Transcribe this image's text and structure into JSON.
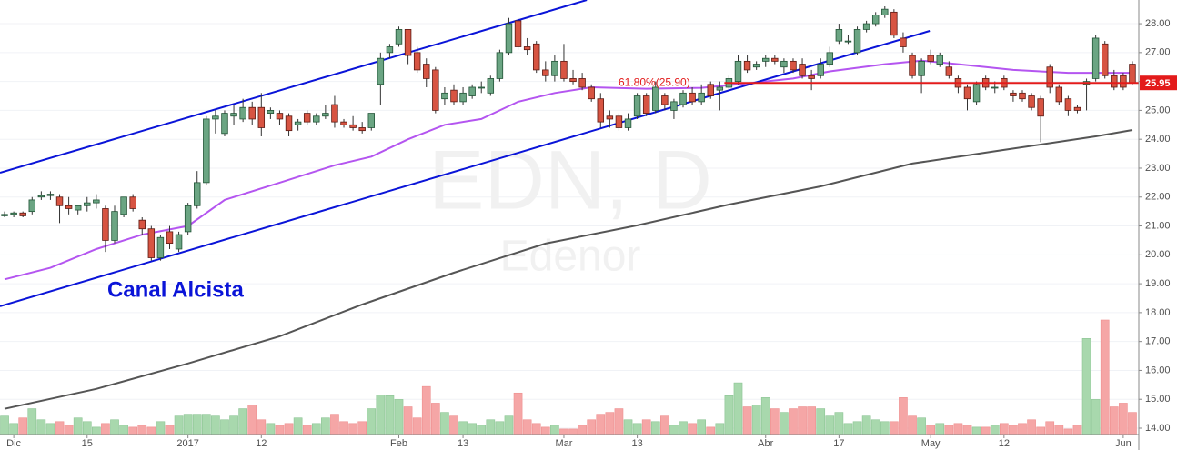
{
  "chart_data": {
    "type": "candlestick",
    "watermark": {
      "symbol": "EDN, D",
      "name": "Edenor"
    },
    "annotation": "Canal Alcista",
    "fib_label": "61.80%(25.90)",
    "categories": [
      null,
      "Dic",
      null,
      null,
      null,
      null,
      null,
      null,
      null,
      "15",
      null,
      null,
      null,
      null,
      null,
      null,
      null,
      null,
      null,
      null,
      "2017",
      null,
      null,
      null,
      null,
      null,
      null,
      null,
      "12",
      null,
      null,
      null,
      null,
      null,
      null,
      null,
      null,
      null,
      null,
      null,
      null,
      null,
      null,
      "Feb",
      null,
      null,
      null,
      null,
      null,
      null,
      "13",
      null,
      null,
      null,
      null,
      null,
      null,
      null,
      null,
      null,
      null,
      "Mar",
      null,
      null,
      null,
      null,
      null,
      null,
      null,
      "13",
      null,
      null,
      null,
      null,
      null,
      null,
      null,
      null,
      null,
      null,
      null,
      null,
      null,
      "Abr",
      null,
      null,
      null,
      null,
      null,
      null,
      null,
      "17",
      null,
      null,
      null,
      null,
      null,
      null,
      null,
      null,
      null,
      "May",
      null,
      null,
      null,
      null,
      null,
      null,
      null,
      "12",
      null,
      null,
      null,
      null,
      null,
      null,
      null,
      null,
      null,
      null,
      null,
      null,
      "Jun",
      null
    ],
    "open": [
      21.35,
      21.4,
      21.45,
      21.5,
      22.0,
      22.05,
      22.0,
      21.7,
      21.55,
      21.7,
      21.8,
      21.6,
      20.5,
      21.4,
      22.0,
      21.2,
      20.9,
      19.9,
      20.8,
      20.2,
      20.8,
      21.7,
      22.5,
      24.7,
      24.2,
      24.8,
      24.7,
      25.1,
      25.1,
      24.9,
      24.9,
      24.8,
      24.5,
      24.9,
      24.6,
      24.8,
      25.2,
      24.6,
      24.5,
      24.4,
      24.4,
      25.9,
      27.0,
      27.3,
      27.8,
      27.0,
      26.6,
      26.4,
      25.4,
      25.7,
      25.3,
      25.5,
      25.8,
      25.6,
      26.1,
      27.0,
      28.1,
      27.2,
      27.3,
      26.4,
      26.2,
      26.7,
      26.1,
      26.1,
      25.8,
      25.4,
      24.8,
      24.8,
      24.4,
      24.8,
      25.5,
      25.0,
      25.5,
      25.0,
      25.2,
      25.6,
      25.3,
      25.9,
      25.7,
      25.8,
      26.0,
      26.7,
      26.5,
      26.7,
      26.8,
      26.5,
      26.7,
      26.6,
      26.2,
      26.2,
      26.6,
      27.4,
      27.4,
      27.0,
      27.8,
      28.0,
      28.3,
      28.4,
      27.5,
      26.9,
      26.2,
      26.9,
      26.6,
      26.5,
      26.1,
      25.8,
      25.3,
      26.1,
      25.8,
      26.1,
      25.6,
      25.6,
      25.5,
      25.4,
      26.5,
      25.8,
      25.4,
      25.1,
      25.9,
      26.1,
      27.3,
      26.2,
      26.2,
      26.6
    ],
    "high": [
      21.5,
      21.5,
      21.5,
      22.0,
      22.2,
      22.2,
      22.1,
      22.0,
      21.7,
      22.0,
      22.1,
      21.7,
      21.7,
      22.0,
      22.1,
      21.3,
      21.0,
      20.7,
      21.0,
      20.8,
      21.8,
      22.9,
      24.8,
      25.0,
      25.0,
      25.2,
      25.4,
      25.3,
      25.6,
      25.1,
      25.0,
      24.9,
      24.7,
      25.0,
      24.9,
      25.2,
      25.5,
      24.7,
      24.8,
      24.6,
      24.9,
      27.0,
      27.3,
      27.9,
      27.8,
      27.2,
      26.8,
      26.5,
      25.8,
      25.9,
      25.8,
      25.9,
      26.0,
      26.2,
      27.1,
      28.2,
      28.2,
      27.5,
      27.4,
      26.7,
      26.9,
      27.3,
      26.4,
      26.3,
      25.9,
      25.6,
      25.0,
      24.9,
      24.9,
      25.6,
      25.6,
      26.0,
      25.6,
      25.4,
      25.7,
      25.8,
      25.9,
      26.0,
      26.0,
      26.2,
      26.9,
      26.9,
      26.7,
      26.9,
      26.9,
      26.8,
      26.8,
      26.8,
      26.4,
      26.8,
      27.2,
      28.0,
      27.6,
      27.9,
      28.1,
      28.4,
      28.6,
      28.5,
      27.7,
      27.0,
      26.8,
      27.1,
      27.0,
      26.7,
      26.2,
      25.9,
      26.0,
      26.2,
      26.0,
      26.2,
      25.7,
      25.7,
      25.6,
      25.5,
      26.6,
      25.9,
      25.5,
      25.2,
      26.1,
      27.6,
      27.4,
      26.4,
      26.3,
      26.7
    ],
    "low": [
      21.3,
      21.3,
      21.3,
      21.4,
      21.9,
      21.9,
      21.1,
      21.4,
      21.4,
      21.5,
      21.6,
      20.1,
      20.4,
      21.3,
      21.5,
      20.7,
      19.8,
      19.8,
      20.2,
      20.1,
      20.7,
      21.6,
      22.4,
      24.2,
      24.1,
      24.5,
      24.6,
      24.5,
      24.1,
      24.7,
      24.5,
      24.1,
      24.3,
      24.5,
      24.5,
      24.7,
      24.4,
      24.4,
      24.3,
      24.2,
      24.3,
      25.2,
      26.8,
      27.2,
      26.6,
      26.3,
      25.8,
      24.9,
      25.2,
      25.2,
      25.2,
      25.4,
      25.6,
      25.5,
      26.0,
      26.9,
      27.1,
      26.9,
      26.3,
      26.0,
      26.0,
      26.0,
      25.9,
      25.7,
      25.3,
      24.4,
      24.4,
      24.3,
      24.3,
      24.7,
      24.8,
      24.9,
      25.0,
      24.7,
      25.1,
      25.2,
      25.2,
      25.4,
      25.0,
      25.7,
      25.9,
      26.3,
      26.4,
      26.5,
      26.6,
      26.3,
      26.3,
      26.1,
      25.7,
      26.1,
      26.5,
      27.3,
      27.3,
      26.9,
      27.7,
      27.9,
      28.2,
      27.5,
      27.0,
      26.1,
      25.6,
      26.6,
      26.5,
      26.1,
      25.6,
      25.0,
      25.2,
      25.7,
      25.6,
      25.7,
      25.3,
      25.3,
      25.0,
      23.9,
      25.6,
      25.2,
      24.8,
      24.9,
      25.0,
      26.0,
      26.1,
      25.7,
      25.7,
      25.9
    ],
    "close": [
      21.4,
      21.45,
      21.35,
      21.9,
      22.05,
      22.1,
      21.7,
      21.6,
      21.7,
      21.8,
      21.9,
      20.5,
      21.5,
      22.0,
      21.6,
      20.9,
      19.9,
      20.6,
      20.4,
      20.7,
      21.7,
      22.5,
      24.7,
      24.8,
      24.9,
      24.9,
      25.1,
      24.7,
      24.4,
      25.0,
      24.7,
      24.3,
      24.6,
      24.6,
      24.8,
      24.9,
      24.6,
      24.5,
      24.4,
      24.3,
      24.9,
      26.8,
      27.2,
      27.8,
      26.9,
      26.4,
      26.1,
      25.0,
      25.6,
      25.3,
      25.6,
      25.8,
      25.8,
      26.1,
      27.0,
      28.0,
      27.2,
      27.1,
      26.4,
      26.2,
      26.7,
      26.1,
      26.0,
      25.8,
      25.4,
      24.6,
      24.7,
      24.4,
      24.7,
      25.5,
      24.9,
      25.8,
      25.2,
      25.3,
      25.6,
      25.3,
      25.6,
      25.5,
      25.8,
      26.1,
      26.7,
      26.4,
      26.6,
      26.8,
      26.7,
      26.7,
      26.4,
      26.2,
      26.1,
      26.6,
      27.0,
      27.8,
      27.4,
      27.8,
      28.0,
      28.3,
      28.5,
      27.6,
      27.2,
      26.2,
      26.7,
      26.7,
      26.9,
      26.2,
      25.8,
      25.4,
      25.9,
      25.8,
      25.8,
      25.8,
      25.5,
      25.4,
      25.1,
      24.8,
      25.8,
      25.3,
      25.0,
      25.0,
      26.0,
      27.5,
      26.2,
      25.8,
      25.8,
      25.95
    ],
    "up_color": "#6ba583",
    "down_color": "#d75442",
    "volume": [
      20,
      12,
      18,
      28,
      16,
      12,
      14,
      10,
      18,
      14,
      8,
      12,
      16,
      10,
      8,
      10,
      8,
      14,
      10,
      20,
      22,
      22,
      22,
      20,
      16,
      20,
      28,
      32,
      16,
      12,
      10,
      12,
      18,
      10,
      12,
      18,
      22,
      14,
      12,
      14,
      28,
      43,
      42,
      38,
      30,
      18,
      52,
      34,
      24,
      20,
      14,
      12,
      10,
      16,
      14,
      20,
      45,
      16,
      12,
      8,
      10,
      6,
      6,
      10,
      16,
      22,
      24,
      28,
      16,
      12,
      16,
      14,
      20,
      10,
      14,
      12,
      16,
      8,
      12,
      42,
      56,
      30,
      32,
      40,
      28,
      24,
      28,
      30,
      30,
      28,
      20,
      24,
      12,
      14,
      20,
      16,
      14,
      14,
      40,
      20,
      18,
      10,
      12,
      10,
      12,
      10,
      8,
      8,
      10,
      12,
      10,
      12,
      16,
      8,
      14,
      10,
      6,
      10,
      104,
      38,
      124,
      30,
      34,
      24
    ],
    "volume_up_color": "#a8d8ad",
    "volume_down_color": "#f5a6a6",
    "moving_averages": [
      {
        "color": "#b455f0",
        "x": [
          0,
          5,
          10,
          15,
          20,
          24,
          30,
          36,
          40,
          44,
          48,
          52,
          56,
          60,
          64,
          70,
          76,
          80,
          86,
          90,
          96,
          100,
          104,
          110,
          116,
          120,
          123
        ],
        "values": [
          19.15,
          19.55,
          20.2,
          20.7,
          21.0,
          21.9,
          22.5,
          23.1,
          23.4,
          24.0,
          24.5,
          24.7,
          25.3,
          25.6,
          25.8,
          25.75,
          25.78,
          25.9,
          26.1,
          26.35,
          26.6,
          26.72,
          26.6,
          26.4,
          26.3,
          26.3,
          26.3
        ]
      },
      {
        "color": "#555555",
        "x": [
          0,
          10,
          20,
          30,
          39,
          49,
          59,
          69,
          79,
          89,
          99,
          109,
          119,
          123
        ],
        "values": [
          14.67,
          15.36,
          16.24,
          17.18,
          18.28,
          19.38,
          20.39,
          21.02,
          21.74,
          22.37,
          23.16,
          23.63,
          24.1,
          24.32
        ]
      }
    ],
    "trend_lines": [
      {
        "color": "#0a14d8",
        "x": [
          -0.5,
          63.5
        ],
        "values": [
          22.84,
          28.82
        ]
      },
      {
        "color": "#0a14d8",
        "x": [
          -0.5,
          100.9
        ],
        "values": [
          18.22,
          27.75
        ]
      }
    ],
    "price_line": {
      "value": 25.95,
      "label": "25.95",
      "color": "#e31b1b",
      "x": 78.5
    },
    "ylim": [
      13.78,
      28.82
    ],
    "yticks": [
      {
        "value": 14,
        "label": "14.00"
      },
      {
        "value": 15,
        "label": "15.00"
      },
      {
        "value": 16,
        "label": "16.00"
      },
      {
        "value": 17,
        "label": "17.00"
      },
      {
        "value": 18,
        "label": "18.00"
      },
      {
        "value": 19,
        "label": "19.00"
      },
      {
        "value": 20,
        "label": "20.00"
      },
      {
        "value": 21,
        "label": "21.00"
      },
      {
        "value": 22,
        "label": "22.00"
      },
      {
        "value": 23,
        "label": "23.00"
      },
      {
        "value": 24,
        "label": "24.00"
      },
      {
        "value": 25,
        "label": "25.00"
      },
      {
        "value": 26,
        "label": "26.00"
      },
      {
        "value": 27,
        "label": "27.00"
      },
      {
        "value": 28,
        "label": "28.00"
      }
    ],
    "grid": true
  }
}
